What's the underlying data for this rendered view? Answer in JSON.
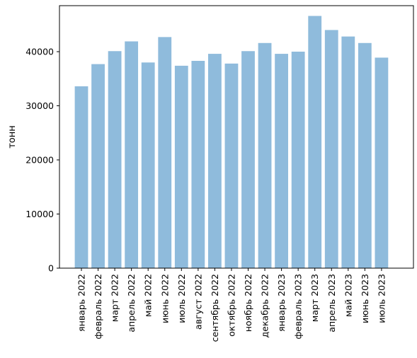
{
  "chart_data": {
    "type": "bar",
    "title": "",
    "xlabel": "",
    "ylabel": "тонн",
    "ylim": [
      0,
      48500
    ],
    "yticks": [
      0,
      10000,
      20000,
      30000,
      40000
    ],
    "grid": false,
    "legend": "none",
    "bar_color": "#8fbbdc",
    "categories": [
      "январь 2022",
      "февраль 2022",
      "март 2022",
      "апрель 2022",
      "май 2022",
      "июнь 2022",
      "июль 2022",
      "август 2022",
      "сентябрь 2022",
      "октябрь 2022",
      "ноябрь 2022",
      "декабрь 2022",
      "январь 2023",
      "февраль 2023",
      "март 2023",
      "апрель 2023",
      "май 2023",
      "июнь 2023",
      "июль 2023"
    ],
    "values": [
      33600,
      37700,
      40100,
      41900,
      38000,
      42700,
      37400,
      38300,
      39600,
      37800,
      40100,
      41600,
      39600,
      40000,
      46600,
      44000,
      42800,
      41600,
      38900
    ]
  }
}
